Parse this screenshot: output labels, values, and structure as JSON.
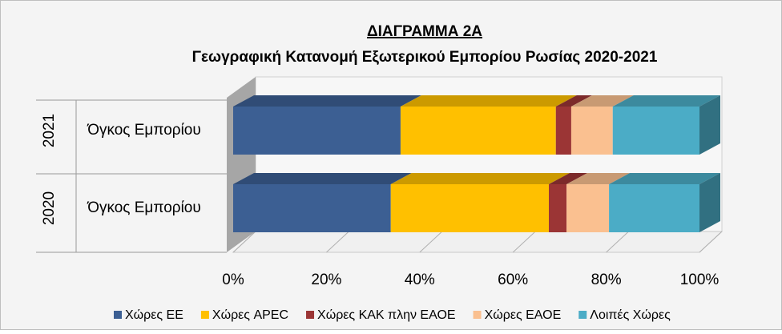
{
  "chart_data": {
    "type": "bar",
    "orientation": "horizontal",
    "stacked": true,
    "title": "ΔΙΑΓΡΑΜΜΑ 2Α",
    "subtitle": "Γεωγραφική Κατανομή Εξωτερικού Εμπορίου Ρωσίας 2020-2021",
    "groups": [
      "2021",
      "2020"
    ],
    "categories": [
      "Όγκος Εμπορίου",
      "Όγκος Εμπορίου"
    ],
    "series": [
      {
        "name": "Χώρες ΕΕ",
        "color": "#3c5f93",
        "values": [
          35.9,
          33.8
        ]
      },
      {
        "name": "Χώρες APEC",
        "color": "#ffc000",
        "values": [
          33.3,
          33.9
        ]
      },
      {
        "name": "Χώρες ΚΑΚ πλην ΕΑΟΕ",
        "color": "#9b3535",
        "values": [
          3.3,
          3.8
        ]
      },
      {
        "name": "Χώρες ΕΑΟΕ",
        "color": "#fac090",
        "values": [
          8.9,
          9.1
        ]
      },
      {
        "name": "Λοιπές Χώρες",
        "color": "#4bacc6",
        "values": [
          18.6,
          19.4
        ]
      }
    ],
    "xlim": [
      0,
      100
    ],
    "xticks": [
      {
        "value": 0,
        "label": "0%"
      },
      {
        "value": 20,
        "label": "20%"
      },
      {
        "value": 40,
        "label": "40%"
      },
      {
        "value": 60,
        "label": "60%"
      },
      {
        "value": 80,
        "label": "80%"
      },
      {
        "value": 100,
        "label": "100%"
      }
    ],
    "grid": true,
    "legend": "bottom"
  }
}
